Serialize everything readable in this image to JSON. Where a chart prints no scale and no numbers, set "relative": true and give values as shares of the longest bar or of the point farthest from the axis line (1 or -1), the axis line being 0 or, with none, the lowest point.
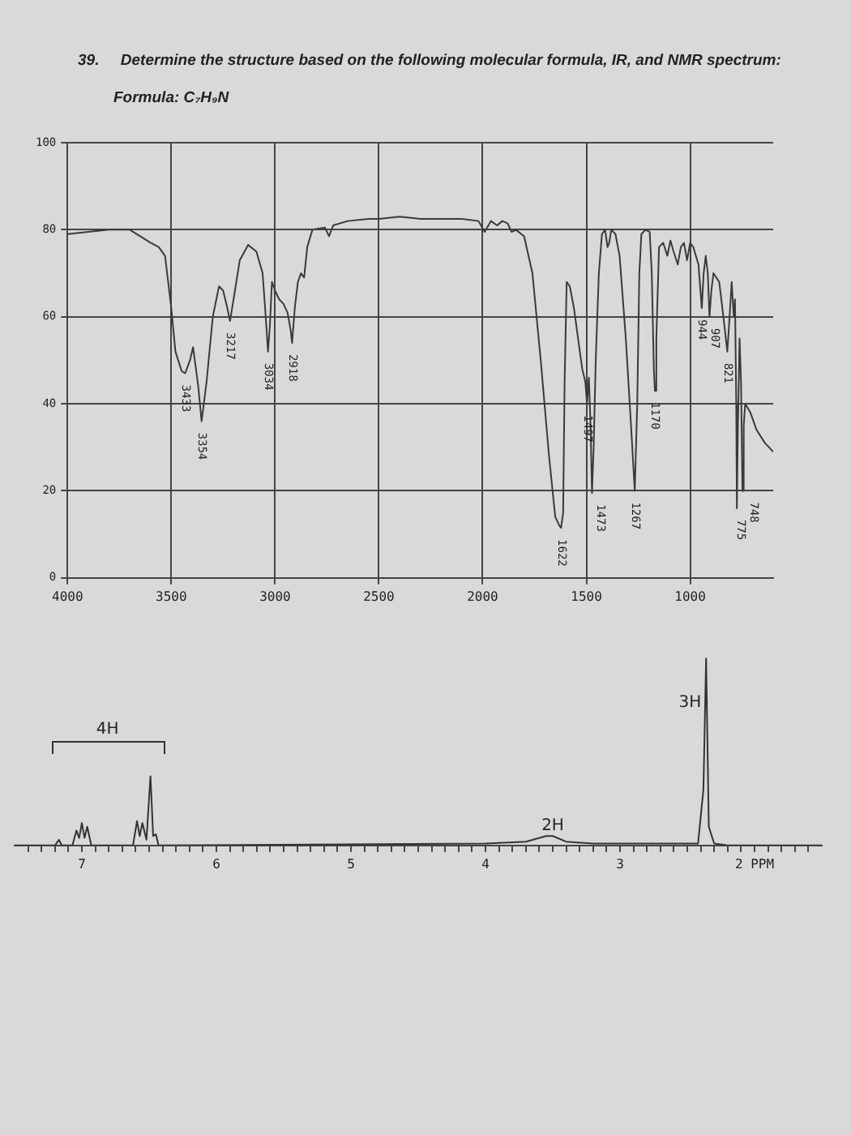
{
  "chart_data": [
    {
      "type": "line",
      "title": "39.     Determine the structure based on the following molecular formula, IR, and NMR spectrum:",
      "subtitle": "Formula: C₇H₉N",
      "color": "#3a3a3a",
      "grid": true,
      "xlim": [
        4000,
        600
      ],
      "xticks": [
        4000,
        3500,
        3000,
        2500,
        2000,
        1500,
        1000
      ],
      "ylim": [
        0,
        100
      ],
      "yticks": [
        0,
        20,
        40,
        60,
        80,
        100
      ],
      "x": [
        4000,
        3900,
        3800,
        3700,
        3650,
        3600,
        3560,
        3530,
        3500,
        3480,
        3450,
        3433,
        3410,
        3395,
        3370,
        3354,
        3330,
        3300,
        3270,
        3250,
        3230,
        3217,
        3200,
        3170,
        3130,
        3090,
        3060,
        3045,
        3034,
        3025,
        3015,
        3000,
        2980,
        2960,
        2940,
        2925,
        2918,
        2905,
        2890,
        2875,
        2860,
        2845,
        2820,
        2760,
        2740,
        2720,
        2650,
        2550,
        2500,
        2400,
        2300,
        2200,
        2100,
        2020,
        1990,
        1960,
        1930,
        1905,
        1880,
        1860,
        1840,
        1800,
        1760,
        1720,
        1680,
        1650,
        1630,
        1622,
        1612,
        1605,
        1595,
        1580,
        1560,
        1540,
        1520,
        1505,
        1497,
        1488,
        1480,
        1473,
        1465,
        1455,
        1440,
        1425,
        1410,
        1398,
        1390,
        1380,
        1360,
        1340,
        1310,
        1285,
        1267,
        1255,
        1245,
        1235,
        1215,
        1195,
        1185,
        1175,
        1170,
        1163,
        1150,
        1130,
        1110,
        1095,
        1080,
        1060,
        1045,
        1030,
        1015,
        1000,
        985,
        960,
        944,
        935,
        925,
        915,
        907,
        898,
        888,
        860,
        840,
        821,
        810,
        800,
        790,
        784,
        778,
        775,
        770,
        762,
        755,
        748,
        742,
        735,
        710,
        680,
        640,
        600
      ],
      "values": [
        79,
        79.5,
        80,
        80,
        78.5,
        77,
        76,
        74,
        62,
        52,
        47.5,
        47,
        50,
        53,
        44,
        36,
        45,
        60,
        67,
        66,
        62,
        59,
        64,
        73,
        76.5,
        75,
        70,
        60,
        52,
        58,
        68,
        66,
        64,
        63,
        61,
        57,
        54,
        62,
        68,
        70,
        69,
        76,
        80,
        80.5,
        78.5,
        81,
        82,
        82.5,
        82.5,
        83,
        82.5,
        82.5,
        82.5,
        82,
        79.5,
        82,
        81,
        82,
        81.5,
        79.5,
        80,
        78.5,
        70,
        50,
        28,
        14,
        12,
        11.5,
        15,
        45,
        68,
        67,
        62,
        55,
        48,
        45,
        40,
        46,
        35,
        19.5,
        30,
        50,
        70,
        79,
        80,
        76,
        77,
        80,
        79,
        74,
        55,
        35,
        20,
        40,
        70,
        79,
        80,
        79.5,
        70,
        48,
        43,
        55,
        76,
        77,
        74,
        77.5,
        75,
        72,
        76,
        77,
        73,
        77,
        76,
        72,
        62,
        70,
        74,
        70,
        60,
        66,
        70,
        68,
        60,
        52,
        60,
        68,
        60,
        64,
        40,
        16,
        35,
        55,
        45,
        20,
        35,
        40,
        38,
        34,
        31,
        29
      ],
      "annotations": [
        {
          "text": "3433",
          "x": 3433,
          "y": 47
        },
        {
          "text": "3354",
          "x": 3354,
          "y": 36
        },
        {
          "text": "3217",
          "x": 3217,
          "y": 59
        },
        {
          "text": "3034",
          "x": 3034,
          "y": 52
        },
        {
          "text": "2918",
          "x": 2918,
          "y": 54
        },
        {
          "text": "1622",
          "x": 1622,
          "y": 11.5
        },
        {
          "text": "1497",
          "x": 1497,
          "y": 40
        },
        {
          "text": "1473",
          "x": 1473,
          "y": 19.5
        },
        {
          "text": "1267",
          "x": 1267,
          "y": 20
        },
        {
          "text": "1170",
          "x": 1170,
          "y": 43
        },
        {
          "text": "944",
          "x": 944,
          "y": 62
        },
        {
          "text": "907",
          "x": 907,
          "y": 60
        },
        {
          "text": "821",
          "x": 821,
          "y": 52
        },
        {
          "text": "775",
          "x": 775,
          "y": 16
        },
        {
          "text": "748",
          "x": 748,
          "y": 20
        }
      ]
    },
    {
      "type": "line",
      "relative": true,
      "color": "#333333",
      "xlim": [
        7.5,
        1.5
      ],
      "xticks": [
        {
          "value": 7.4,
          "label": null
        },
        {
          "value": 7.3,
          "label": null
        },
        {
          "value": 7.2,
          "label": null
        },
        {
          "value": 7.1,
          "label": null
        },
        7,
        {
          "value": 6.9,
          "label": null
        },
        {
          "value": 6.8,
          "label": null
        },
        {
          "value": 6.7,
          "label": null
        },
        {
          "value": 6.6,
          "label": null
        },
        {
          "value": 6.5,
          "label": null
        },
        {
          "value": 6.4,
          "label": null
        },
        {
          "value": 6.3,
          "label": null
        },
        {
          "value": 6.2,
          "label": null
        },
        {
          "value": 6.1,
          "label": null
        },
        6,
        {
          "value": 5.9,
          "label": null
        },
        {
          "value": 5.8,
          "label": null
        },
        {
          "value": 5.7,
          "label": null
        },
        {
          "value": 5.6,
          "label": null
        },
        {
          "value": 5.5,
          "label": null
        },
        {
          "value": 5.4,
          "label": null
        },
        {
          "value": 5.3,
          "label": null
        },
        {
          "value": 5.2,
          "label": null
        },
        {
          "value": 5.1,
          "label": null
        },
        5,
        {
          "value": 4.9,
          "label": null
        },
        {
          "value": 4.8,
          "label": null
        },
        {
          "value": 4.7,
          "label": null
        },
        {
          "value": 4.6,
          "label": null
        },
        {
          "value": 4.5,
          "label": null
        },
        {
          "value": 4.4,
          "label": null
        },
        {
          "value": 4.3,
          "label": null
        },
        {
          "value": 4.2,
          "label": null
        },
        {
          "value": 4.1,
          "label": null
        },
        4,
        {
          "value": 3.9,
          "label": null
        },
        {
          "value": 3.8,
          "label": null
        },
        {
          "value": 3.7,
          "label": null
        },
        {
          "value": 3.6,
          "label": null
        },
        {
          "value": 3.5,
          "label": null
        },
        {
          "value": 3.4,
          "label": null
        },
        {
          "value": 3.3,
          "label": null
        },
        {
          "value": 3.2,
          "label": null
        },
        {
          "value": 3.1,
          "label": null
        },
        3,
        {
          "value": 2.9,
          "label": null
        },
        {
          "value": 2.8,
          "label": null
        },
        {
          "value": 2.7,
          "label": null
        },
        {
          "value": 2.6,
          "label": null
        },
        {
          "value": 2.5,
          "label": null
        },
        {
          "value": 2.4,
          "label": null
        },
        {
          "value": 2.3,
          "label": null
        },
        {
          "value": 2.2,
          "label": null
        },
        {
          "value": 2.1,
          "label": null
        },
        {
          "value": 2,
          "label": "2 PPM"
        },
        {
          "value": 1.9,
          "label": null
        },
        {
          "value": 1.8,
          "label": null
        },
        {
          "value": 1.7,
          "label": null
        },
        {
          "value": 1.6,
          "label": null
        }
      ],
      "x": [
        7.5,
        7.2,
        7.17,
        7.15,
        7.07,
        7.04,
        7.02,
        7.0,
        6.98,
        6.96,
        6.93,
        6.62,
        6.59,
        6.57,
        6.55,
        6.52,
        6.49,
        6.47,
        6.45,
        6.43,
        4.0,
        3.7,
        3.55,
        3.5,
        3.4,
        3.2,
        2.42,
        2.38,
        2.36,
        2.34,
        2.3,
        2.2,
        1.5
      ],
      "values": [
        0,
        0,
        0.03,
        0,
        0,
        0.08,
        0.04,
        0.12,
        0.04,
        0.1,
        0,
        0,
        0.13,
        0.05,
        0.12,
        0.03,
        0.37,
        0.05,
        0.06,
        0,
        0.01,
        0.02,
        0.05,
        0.05,
        0.02,
        0.01,
        0.01,
        0.3,
        1,
        0.1,
        0.01,
        0,
        0
      ],
      "annotations": [
        "4H",
        {
          "text": "2H",
          "x": 3.5,
          "y": 0.06
        },
        {
          "text": "3H",
          "x": 2.36,
          "y": 0.72
        }
      ]
    }
  ]
}
